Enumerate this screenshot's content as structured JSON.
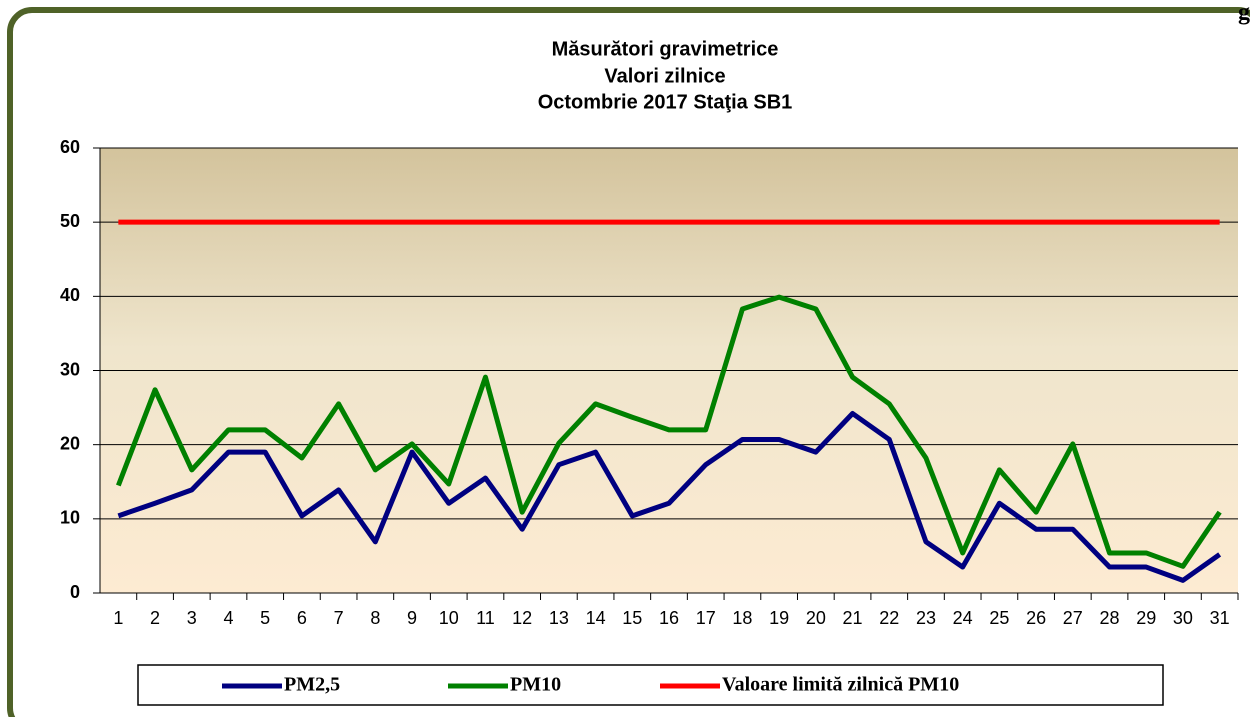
{
  "chart_data": {
    "type": "line",
    "title": [
      "Măsurători gravimetrice",
      "Valori zilnice",
      "Octombrie 2017 Staţia SB1"
    ],
    "corner_text": "g",
    "categories": [
      1,
      2,
      3,
      4,
      5,
      6,
      7,
      8,
      9,
      10,
      11,
      12,
      13,
      14,
      15,
      16,
      17,
      18,
      19,
      20,
      21,
      22,
      23,
      24,
      25,
      26,
      27,
      28,
      29,
      30,
      31
    ],
    "series": [
      {
        "name": "PM2,5",
        "color": "#000080",
        "values": [
          10.4,
          12.1,
          13.9,
          19,
          19,
          10.4,
          13.9,
          6.9,
          19,
          12.1,
          15.5,
          8.6,
          17.3,
          19,
          10.4,
          12.1,
          17.3,
          20.7,
          20.7,
          19,
          24.2,
          20.7,
          6.9,
          3.5,
          12.1,
          8.6,
          8.6,
          3.5,
          3.5,
          1.7,
          5.2
        ]
      },
      {
        "name": "PM10",
        "color": "#008000",
        "values": [
          14.5,
          27.4,
          16.6,
          22,
          22,
          18.2,
          25.5,
          16.6,
          20.1,
          14.7,
          29.1,
          10.9,
          20.2,
          25.5,
          23.7,
          22,
          22,
          38.3,
          39.9,
          38.3,
          29.1,
          25.5,
          18.2,
          5.4,
          16.6,
          10.9,
          20.1,
          5.4,
          5.4,
          3.6,
          10.9
        ]
      },
      {
        "name": "Valoare limită zilnică PM10",
        "color": "#ff0000",
        "values": [
          50,
          50,
          50,
          50,
          50,
          50,
          50,
          50,
          50,
          50,
          50,
          50,
          50,
          50,
          50,
          50,
          50,
          50,
          50,
          50,
          50,
          50,
          50,
          50,
          50,
          50,
          50,
          50,
          50,
          50,
          50
        ]
      }
    ],
    "ylim": [
      0,
      60
    ],
    "yticks": [
      0,
      10,
      20,
      30,
      40,
      50,
      60
    ],
    "grid": true,
    "legend": "bottom"
  }
}
